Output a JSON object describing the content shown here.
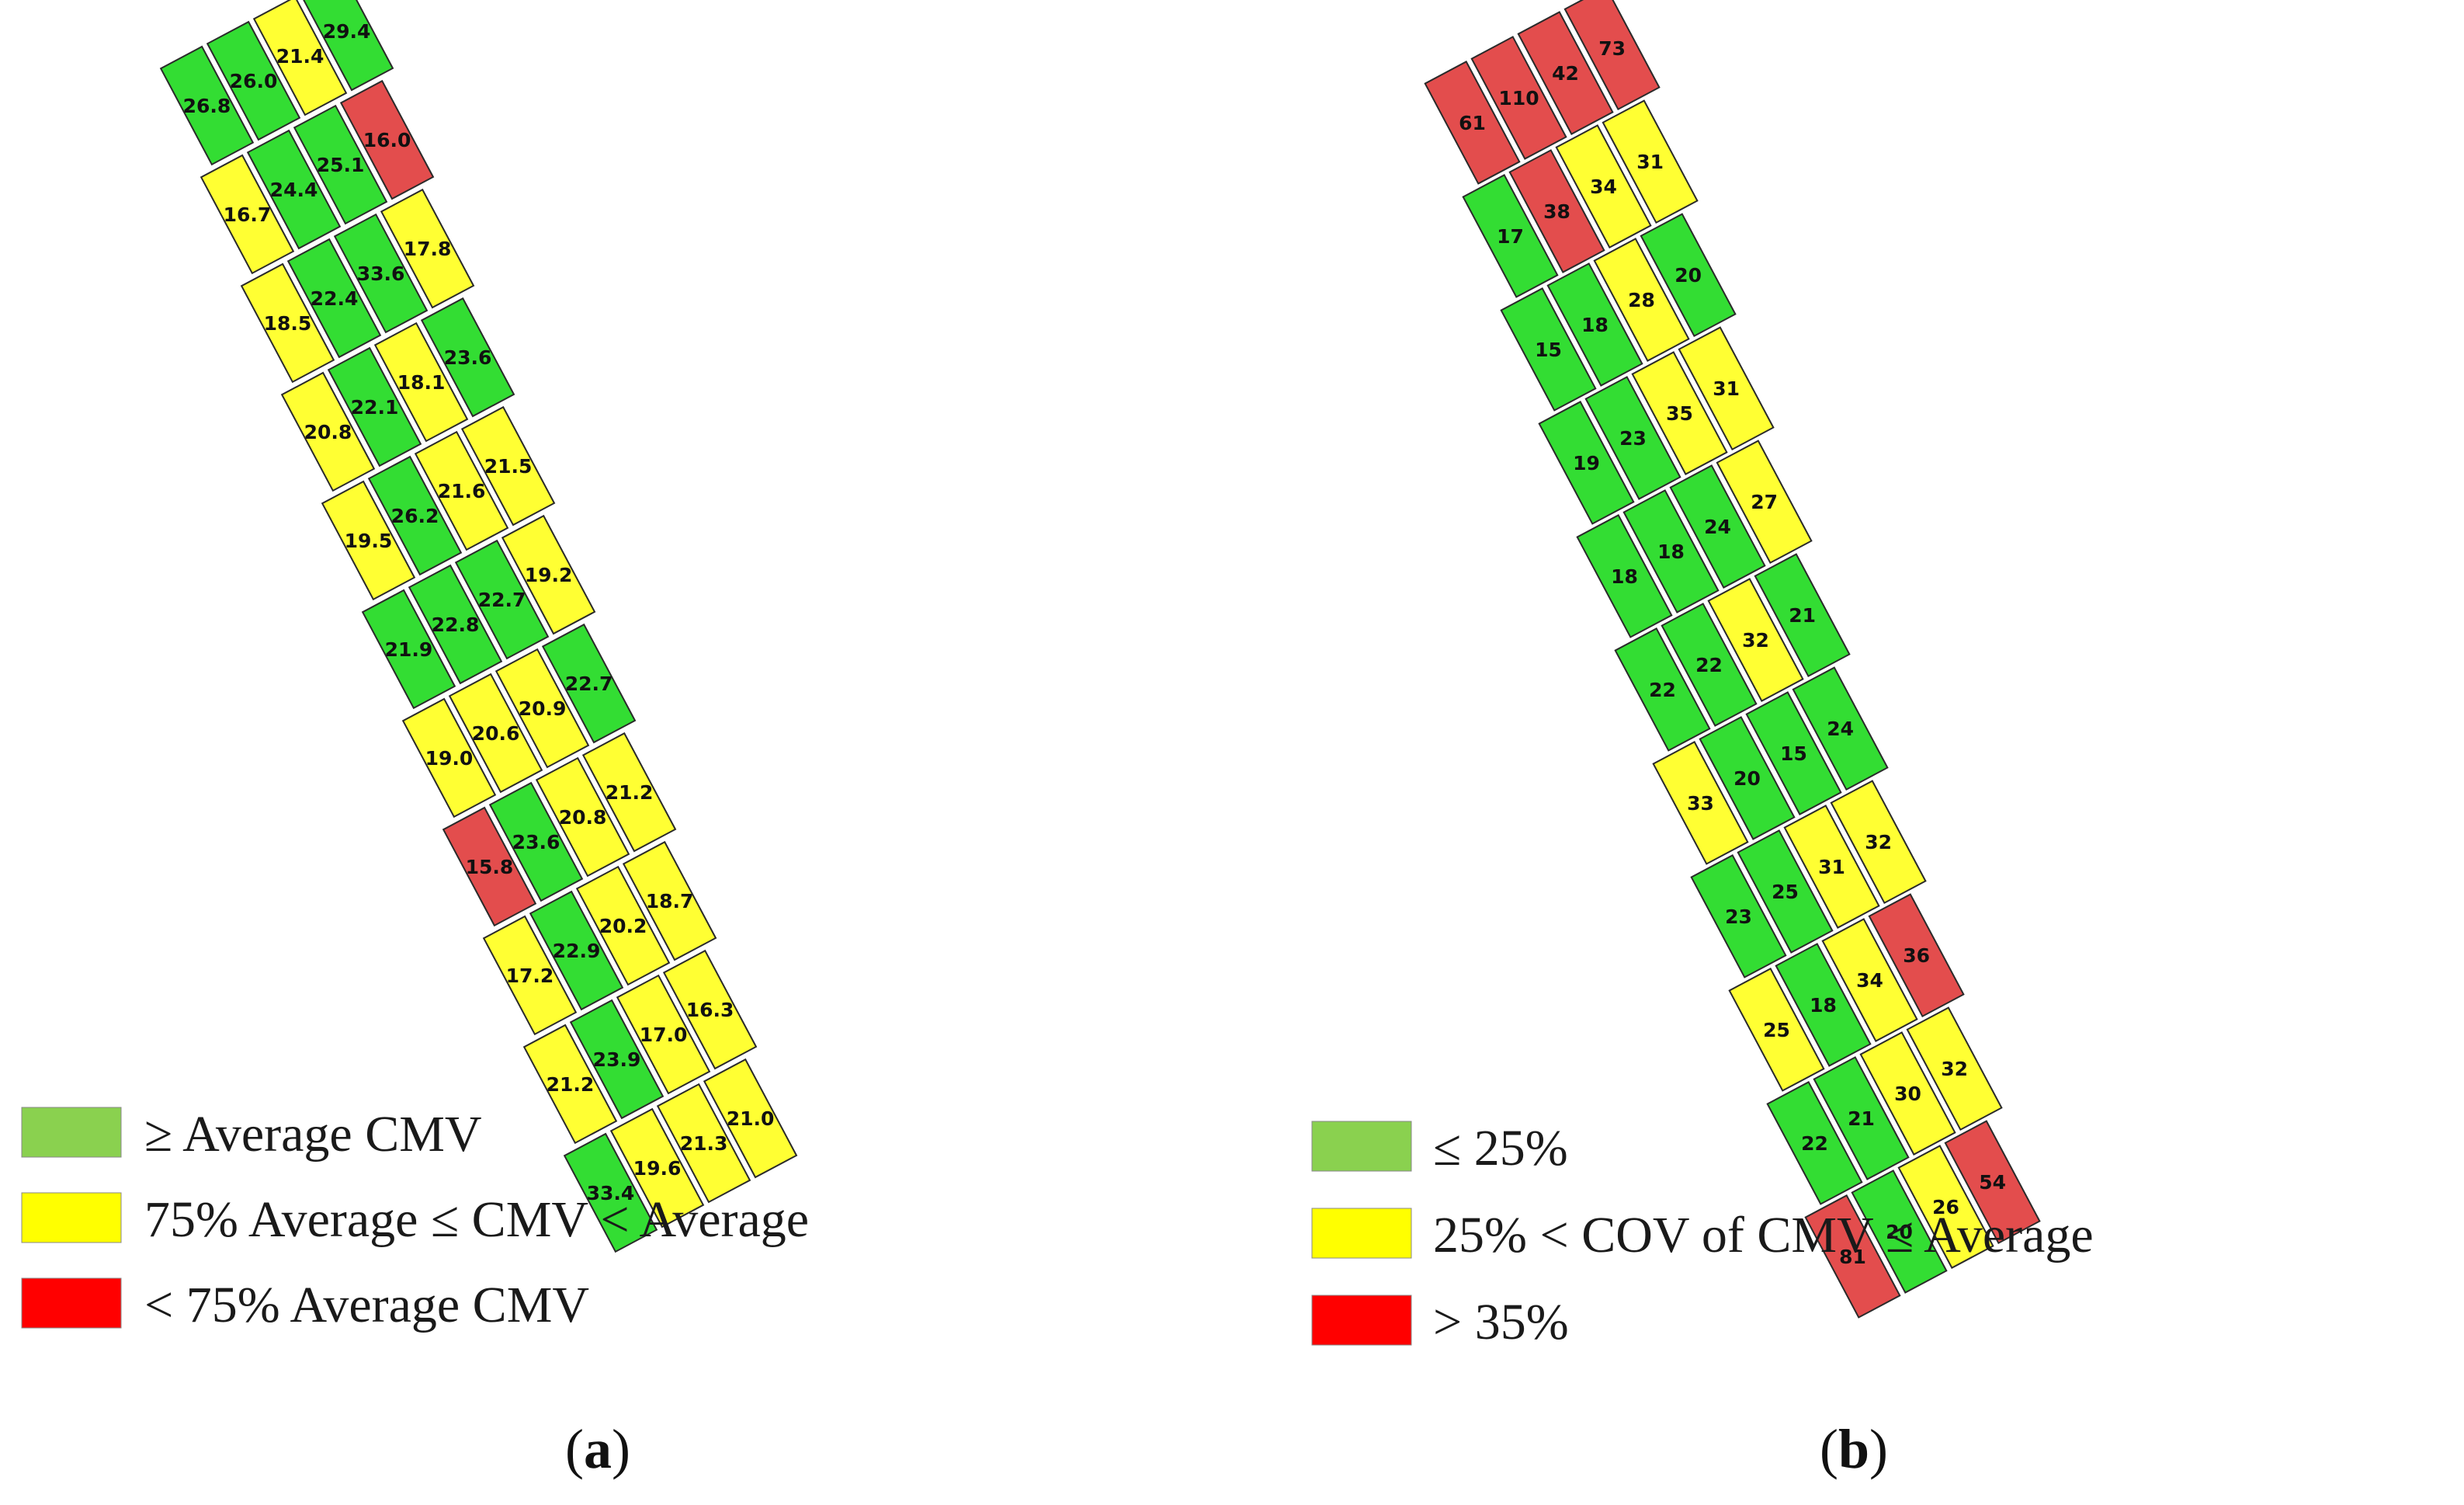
{
  "colors": {
    "green": "#33dd33",
    "yellow": "#ffff33",
    "red": "#e34d4d",
    "legend_green": "#8ad14f",
    "legend_yellow": "#ffff00",
    "legend_red": "#ff0000"
  },
  "panels": [
    {
      "id": "a",
      "caption": "a",
      "legend": [
        {
          "color": "green",
          "label": "≥ Average CMV"
        },
        {
          "color": "yellow",
          "label": "75% Average ≤ CMV < Average"
        },
        {
          "color": "red",
          "label": "< 75% Average CMV"
        }
      ],
      "segments": [
        {
          "cells": [
            {
              "v": "26.8",
              "c": "green"
            },
            {
              "v": "26.0",
              "c": "green"
            },
            {
              "v": "21.4",
              "c": "yellow"
            },
            {
              "v": "29.4",
              "c": "green"
            }
          ]
        },
        {
          "cells": [
            {
              "v": "16.7",
              "c": "yellow"
            },
            {
              "v": "24.4",
              "c": "green"
            },
            {
              "v": "25.1",
              "c": "green"
            },
            {
              "v": "16.0",
              "c": "red"
            }
          ]
        },
        {
          "cells": [
            {
              "v": "18.5",
              "c": "yellow"
            },
            {
              "v": "22.4",
              "c": "green"
            },
            {
              "v": "33.6",
              "c": "green"
            },
            {
              "v": "17.8",
              "c": "yellow"
            }
          ]
        },
        {
          "cells": [
            {
              "v": "20.8",
              "c": "yellow"
            },
            {
              "v": "22.1",
              "c": "green"
            },
            {
              "v": "18.1",
              "c": "yellow"
            },
            {
              "v": "23.6",
              "c": "green"
            }
          ]
        },
        {
          "cells": [
            {
              "v": "19.5",
              "c": "yellow"
            },
            {
              "v": "26.2",
              "c": "green"
            },
            {
              "v": "21.6",
              "c": "yellow"
            },
            {
              "v": "21.5",
              "c": "yellow"
            }
          ]
        },
        {
          "cells": [
            {
              "v": "21.9",
              "c": "green"
            },
            {
              "v": "22.8",
              "c": "green"
            },
            {
              "v": "22.7",
              "c": "green"
            },
            {
              "v": "19.2",
              "c": "yellow"
            }
          ]
        },
        {
          "cells": [
            {
              "v": "19.0",
              "c": "yellow"
            },
            {
              "v": "20.6",
              "c": "yellow"
            },
            {
              "v": "20.9",
              "c": "yellow"
            },
            {
              "v": "22.7",
              "c": "green"
            }
          ]
        },
        {
          "cells": [
            {
              "v": "15.8",
              "c": "red"
            },
            {
              "v": "23.6",
              "c": "green"
            },
            {
              "v": "20.8",
              "c": "yellow"
            },
            {
              "v": "21.2",
              "c": "yellow"
            }
          ]
        },
        {
          "cells": [
            {
              "v": "17.2",
              "c": "yellow"
            },
            {
              "v": "22.9",
              "c": "green"
            },
            {
              "v": "20.2",
              "c": "yellow"
            },
            {
              "v": "18.7",
              "c": "yellow"
            }
          ]
        },
        {
          "cells": [
            {
              "v": "21.2",
              "c": "yellow"
            },
            {
              "v": "23.9",
              "c": "green"
            },
            {
              "v": "17.0",
              "c": "yellow"
            },
            {
              "v": "16.3",
              "c": "yellow"
            }
          ]
        },
        {
          "cells": [
            {
              "v": "33.4",
              "c": "green"
            },
            {
              "v": "19.6",
              "c": "yellow"
            },
            {
              "v": "21.3",
              "c": "yellow"
            },
            {
              "v": "21.0",
              "c": "yellow"
            }
          ]
        }
      ]
    },
    {
      "id": "b",
      "caption": "b",
      "legend": [
        {
          "color": "green",
          "label": "≤ 25%"
        },
        {
          "color": "yellow",
          "label": "25% < COV of CMV ≤ Average"
        },
        {
          "color": "red",
          "label": "> 35%"
        }
      ],
      "segments": [
        {
          "cells": [
            {
              "v": "61",
              "c": "red"
            },
            {
              "v": "110",
              "c": "red"
            },
            {
              "v": "42",
              "c": "red"
            },
            {
              "v": "73",
              "c": "red"
            }
          ]
        },
        {
          "cells": [
            {
              "v": "17",
              "c": "green"
            },
            {
              "v": "38",
              "c": "red"
            },
            {
              "v": "34",
              "c": "yellow"
            },
            {
              "v": "31",
              "c": "yellow"
            }
          ]
        },
        {
          "cells": [
            {
              "v": "15",
              "c": "green"
            },
            {
              "v": "18",
              "c": "green"
            },
            {
              "v": "28",
              "c": "yellow"
            },
            {
              "v": "20",
              "c": "green"
            }
          ]
        },
        {
          "cells": [
            {
              "v": "19",
              "c": "green"
            },
            {
              "v": "23",
              "c": "green"
            },
            {
              "v": "35",
              "c": "yellow"
            },
            {
              "v": "31",
              "c": "yellow"
            }
          ]
        },
        {
          "cells": [
            {
              "v": "18",
              "c": "green"
            },
            {
              "v": "18",
              "c": "green"
            },
            {
              "v": "24",
              "c": "green"
            },
            {
              "v": "27",
              "c": "yellow"
            }
          ]
        },
        {
          "cells": [
            {
              "v": "22",
              "c": "green"
            },
            {
              "v": "22",
              "c": "green"
            },
            {
              "v": "32",
              "c": "yellow"
            },
            {
              "v": "21",
              "c": "green"
            }
          ]
        },
        {
          "cells": [
            {
              "v": "33",
              "c": "yellow"
            },
            {
              "v": "20",
              "c": "green"
            },
            {
              "v": "15",
              "c": "green"
            },
            {
              "v": "24",
              "c": "green"
            }
          ]
        },
        {
          "cells": [
            {
              "v": "23",
              "c": "green"
            },
            {
              "v": "25",
              "c": "green"
            },
            {
              "v": "31",
              "c": "yellow"
            },
            {
              "v": "32",
              "c": "yellow"
            }
          ]
        },
        {
          "cells": [
            {
              "v": "25",
              "c": "yellow"
            },
            {
              "v": "18",
              "c": "green"
            },
            {
              "v": "34",
              "c": "yellow"
            },
            {
              "v": "36",
              "c": "red"
            }
          ]
        },
        {
          "cells": [
            {
              "v": "22",
              "c": "green"
            },
            {
              "v": "21",
              "c": "green"
            },
            {
              "v": "30",
              "c": "yellow"
            },
            {
              "v": "32",
              "c": "yellow"
            }
          ]
        },
        {
          "cells": [
            {
              "v": "81",
              "c": "red"
            },
            {
              "v": "20",
              "c": "green"
            },
            {
              "v": "26",
              "c": "yellow"
            },
            {
              "v": "54",
              "c": "red"
            }
          ]
        }
      ]
    }
  ]
}
